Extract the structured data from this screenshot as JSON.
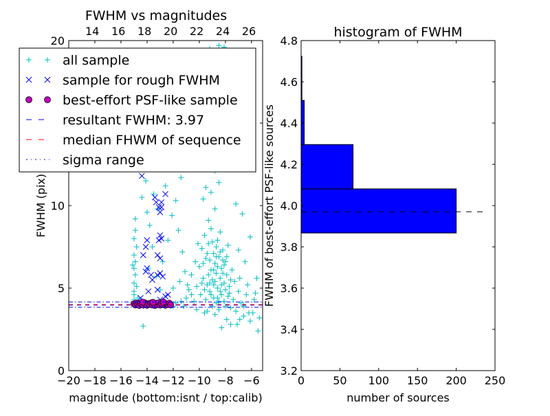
{
  "chart_data": [
    {
      "type": "scatter",
      "title": "FWHM vs magnitudes",
      "xlabel": "magnitude (bottom:isnt / top:calib)",
      "ylabel": "FWHM (pix)",
      "xlim": [
        -20,
        -5.15
      ],
      "ylim": [
        0,
        20
      ],
      "xticks": [
        -20,
        -18,
        -16,
        -14,
        -12,
        -10,
        -8,
        -6
      ],
      "xtick_labels": [
        "−20",
        "−18",
        "−16",
        "−14",
        "−12",
        "−10",
        "−8",
        "−6"
      ],
      "yticks": [
        0,
        5,
        10,
        15,
        20
      ],
      "ytick_labels": [
        "0",
        "5",
        "10",
        "15",
        "20"
      ],
      "top_axis": {
        "offset": 32.2,
        "ticks": [
          14,
          16,
          18,
          20,
          22,
          24,
          26
        ],
        "tick_labels": [
          "14",
          "16",
          "18",
          "20",
          "22",
          "24",
          "26"
        ]
      },
      "legend_position": "upper-left",
      "series": [
        {
          "name": "all sample",
          "marker": "+",
          "color": "#00bfbf",
          "points": [
            [
              -15,
              4.3
            ],
            [
              -15,
              4.8
            ],
            [
              -15,
              5.3
            ],
            [
              -14.9,
              5.8
            ],
            [
              -15,
              6.2
            ],
            [
              -14.9,
              6.6
            ],
            [
              -15,
              7
            ],
            [
              -14.8,
              7.5
            ],
            [
              -15,
              8
            ],
            [
              -14.9,
              8.5
            ],
            [
              -14.9,
              9.2
            ],
            [
              -15.1,
              6.4
            ],
            [
              -14.8,
              5.1
            ],
            [
              -15,
              4.6
            ],
            [
              -14.7,
              4.4
            ],
            [
              -14.3,
              2.7
            ],
            [
              -14.4,
              10.5
            ],
            [
              -14,
              9.6
            ],
            [
              -13.8,
              8.8
            ],
            [
              -13.5,
              10.7
            ],
            [
              -13.2,
              9.8
            ],
            [
              -13.6,
              7.5
            ],
            [
              -13.9,
              6.2
            ],
            [
              -13.3,
              5.7
            ],
            [
              -12.8,
              6.6
            ],
            [
              -12.4,
              7.9
            ],
            [
              -12.1,
              9.4
            ],
            [
              -11.8,
              10.3
            ],
            [
              -11.6,
              8.5
            ],
            [
              -11.3,
              7.2
            ],
            [
              -11.1,
              6
            ],
            [
              -11.5,
              5.4
            ],
            [
              -12,
              5
            ],
            [
              -13,
              4.9
            ],
            [
              -14.1,
              11.5
            ],
            [
              -12.6,
              11.2
            ],
            [
              -11.9,
              12.3
            ],
            [
              -13.4,
              12.8
            ],
            [
              -11.4,
              11.7
            ],
            [
              -10.4,
              4.2
            ],
            [
              -10.2,
              5.1
            ],
            [
              -10,
              6.3
            ],
            [
              -9.9,
              4.6
            ],
            [
              -9.8,
              7.4
            ],
            [
              -9.7,
              5.6
            ],
            [
              -9.6,
              8.2
            ],
            [
              -9.5,
              4.3
            ],
            [
              -9.5,
              6.8
            ],
            [
              -9.4,
              5.2
            ],
            [
              -9.3,
              9.1
            ],
            [
              -9.3,
              7.7
            ],
            [
              -9.2,
              4.8
            ],
            [
              -9.1,
              6.1
            ],
            [
              -9.1,
              8.6
            ],
            [
              -9,
              5.5
            ],
            [
              -9,
              3.9
            ],
            [
              -8.9,
              7.1
            ],
            [
              -8.9,
              4.4
            ],
            [
              -8.8,
              6.5
            ],
            [
              -8.8,
              9.8
            ],
            [
              -8.7,
              5.9
            ],
            [
              -8.7,
              4.1
            ],
            [
              -8.6,
              7.9
            ],
            [
              -8.6,
              5
            ],
            [
              -8.5,
              6.9
            ],
            [
              -8.5,
              3.7
            ],
            [
              -8.4,
              5.6
            ],
            [
              -8.4,
              8.4
            ],
            [
              -8.3,
              4.6
            ],
            [
              -8.3,
              6.2
            ],
            [
              -8.2,
              7.3
            ],
            [
              -8.1,
              5.3
            ],
            [
              -8.1,
              4.2
            ],
            [
              -8,
              6.6
            ],
            [
              -8,
              3.9
            ],
            [
              -7.9,
              5.8
            ],
            [
              -7.8,
              4.5
            ],
            [
              -7.8,
              7.6
            ],
            [
              -7.7,
              5.1
            ],
            [
              -7.6,
              3.8
            ],
            [
              -7.5,
              6.1
            ],
            [
              -7.4,
              4.3
            ],
            [
              -7.3,
              5.4
            ],
            [
              -7.2,
              3.6
            ],
            [
              -7,
              4.8
            ],
            [
              -6.8,
              4.1
            ],
            [
              -6.6,
              3.9
            ],
            [
              -6.4,
              4.6
            ],
            [
              -6.2,
              3.5
            ],
            [
              -9.6,
              4.9
            ],
            [
              -9.4,
              3.6
            ],
            [
              -9.2,
              6.7
            ],
            [
              -9,
              7.8
            ],
            [
              -8.9,
              5.2
            ],
            [
              -8.7,
              6.9
            ],
            [
              -8.6,
              4.4
            ],
            [
              -8.4,
              7.2
            ],
            [
              -8.2,
              5.9
            ],
            [
              -8,
              4.9
            ],
            [
              -7.9,
              6.9
            ],
            [
              -9.8,
              5.3
            ],
            [
              -10.1,
              7.7
            ],
            [
              -10.3,
              6.6
            ],
            [
              -10.6,
              5.8
            ],
            [
              -10.8,
              4.9
            ],
            [
              -11,
              4.4
            ],
            [
              -9.7,
              10.4
            ],
            [
              -9.5,
              11.1
            ],
            [
              -9.1,
              10.8
            ],
            [
              -8.8,
              12.1
            ],
            [
              -8.5,
              11.4
            ],
            [
              -10.2,
              12.6
            ],
            [
              -9.9,
              13.8
            ],
            [
              -9.2,
              14.6
            ],
            [
              -8.6,
              13.3
            ],
            [
              -8.1,
              15.2
            ],
            [
              -9.6,
              16.4
            ],
            [
              -8.9,
              17.1
            ],
            [
              -7.9,
              18.4
            ],
            [
              -9.2,
              19.5
            ],
            [
              -8.5,
              19.7
            ],
            [
              -8.1,
              19.6
            ],
            [
              -10.8,
              19.1
            ],
            [
              -12.5,
              19.4
            ],
            [
              -7.5,
              12.7
            ],
            [
              -7.2,
              10.1
            ],
            [
              -6.7,
              9.5
            ],
            [
              -6.1,
              8.1
            ],
            [
              -7,
              7.3
            ],
            [
              -6.5,
              6.6
            ],
            [
              -5.6,
              5.6
            ],
            [
              -5.8,
              4.3
            ],
            [
              -8.3,
              2.6
            ],
            [
              -7.6,
              2.8
            ],
            [
              -7.1,
              2.8
            ],
            [
              -6.6,
              3.3
            ],
            [
              -6.1,
              3.0
            ],
            [
              -5.9,
              3.5
            ],
            [
              -5.5,
              2.4
            ],
            [
              -5.4,
              3.2
            ],
            [
              -6.9,
              3.1
            ],
            [
              -7.9,
              3.1
            ],
            [
              -8.8,
              3.4
            ],
            [
              -9.6,
              3.5
            ],
            [
              -10.2,
              3.7
            ],
            [
              -11.2,
              3.9
            ],
            [
              -11.8,
              4.1
            ],
            [
              -12,
              3.9
            ],
            [
              -9.3,
              5.8
            ],
            [
              -9.1,
              4.6
            ],
            [
              -8.8,
              5.4
            ],
            [
              -8.6,
              6.3
            ],
            [
              -8.4,
              4.8
            ],
            [
              -8.2,
              6.7
            ],
            [
              -8.9,
              6.1
            ],
            [
              -9.4,
              7.1
            ],
            [
              -8.7,
              7.5
            ],
            [
              -8.3,
              5.2
            ],
            [
              -9.7,
              6.5
            ],
            [
              -9.2,
              5.3
            ],
            [
              -8.5,
              4.2
            ],
            [
              -8.1,
              6.4
            ],
            [
              -7.7,
              4.7
            ],
            [
              -7.6,
              5.5
            ],
            [
              -10.6,
              4.6
            ],
            [
              -10.9,
              5.2
            ],
            [
              -11.4,
              4.2
            ],
            [
              -6.9,
              5.6
            ],
            [
              -6.3,
              5.2
            ],
            [
              -5.7,
              4.7
            ]
          ]
        },
        {
          "name": "sample for rough FWHM",
          "marker": "x",
          "color": "#0000ff",
          "points": [
            [
              -14.4,
              11.8
            ],
            [
              -13.4,
              10.5
            ],
            [
              -13.3,
              10.2
            ],
            [
              -12.9,
              10.2
            ],
            [
              -12.6,
              10.7
            ],
            [
              -13.1,
              9.9
            ],
            [
              -13,
              9.6
            ],
            [
              -12.9,
              9.9
            ],
            [
              -13,
              8.2
            ],
            [
              -12.9,
              8.0
            ],
            [
              -13.1,
              7.9
            ],
            [
              -14.0,
              7.9
            ],
            [
              -14.1,
              7.5
            ],
            [
              -14.3,
              7.0
            ],
            [
              -13.2,
              7.0
            ],
            [
              -13.0,
              6.8
            ],
            [
              -14.0,
              6.2
            ],
            [
              -14.1,
              6.0
            ],
            [
              -13.7,
              5.8
            ],
            [
              -13.6,
              5.5
            ],
            [
              -13.2,
              5.8
            ],
            [
              -13.0,
              5.9
            ],
            [
              -12.8,
              5.7
            ],
            [
              -13.9,
              4.8
            ],
            [
              -13.2,
              4.9
            ],
            [
              -14.5,
              4.4
            ],
            [
              -13.0,
              4.3
            ],
            [
              -12.6,
              4.5
            ],
            [
              -12.4,
              4.6
            ]
          ]
        },
        {
          "name": "best-effort PSF-like sample",
          "marker": "o",
          "color": "#bf00bf",
          "points": [
            [
              -15,
              4.05
            ],
            [
              -14.9,
              3.98
            ],
            [
              -14.8,
              4.1
            ],
            [
              -14.7,
              4.0
            ],
            [
              -14.6,
              3.95
            ],
            [
              -14.5,
              4.08
            ],
            [
              -14.4,
              4.02
            ],
            [
              -14.3,
              3.97
            ],
            [
              -14.2,
              4.12
            ],
            [
              -14.1,
              4.0
            ],
            [
              -14.0,
              3.96
            ],
            [
              -13.9,
              4.06
            ],
            [
              -13.8,
              4.01
            ],
            [
              -13.7,
              4.1
            ],
            [
              -13.6,
              3.98
            ],
            [
              -13.5,
              4.04
            ],
            [
              -13.4,
              3.95
            ],
            [
              -13.3,
              4.07
            ],
            [
              -13.2,
              4.0
            ],
            [
              -13.1,
              4.11
            ],
            [
              -13.0,
              3.97
            ],
            [
              -12.9,
              4.05
            ],
            [
              -12.8,
              4.0
            ],
            [
              -12.7,
              4.09
            ],
            [
              -12.6,
              3.96
            ],
            [
              -12.5,
              4.04
            ],
            [
              -12.4,
              4.0
            ],
            [
              -12.3,
              4.08
            ],
            [
              -12.2,
              3.98
            ],
            [
              -14.35,
              4.15
            ],
            [
              -13.55,
              4.14
            ],
            [
              -12.75,
              4.16
            ]
          ]
        }
      ],
      "hlines": [
        {
          "name": "resultant FWHM: 3.97",
          "y": 3.97,
          "color": "#0000ff",
          "style": "dashed"
        },
        {
          "name": "median FHWM of sequence",
          "y": 4.0,
          "color": "#ff0000",
          "style": "dashed"
        },
        {
          "name": "sigma range",
          "y": [
            3.84,
            4.16
          ],
          "color": "#0000ff",
          "style": "dashdot"
        }
      ]
    },
    {
      "type": "bar",
      "orientation": "horizontal",
      "title": "histogram of FWHM",
      "xlabel": "number of sources",
      "ylabel": "FWHM of best-effort PSF-like sources",
      "xlim": [
        0,
        250
      ],
      "ylim": [
        3.2,
        4.8
      ],
      "xticks": [
        0,
        50,
        100,
        150,
        200,
        250
      ],
      "xtick_labels": [
        "0",
        "50",
        "100",
        "150",
        "200",
        "250"
      ],
      "yticks": [
        3.2,
        3.4,
        3.6,
        3.8,
        4.0,
        4.2,
        4.4,
        4.6,
        4.8
      ],
      "ytick_labels": [
        "3.2",
        "3.4",
        "3.6",
        "3.8",
        "4.0",
        "4.2",
        "4.4",
        "4.6",
        "4.8"
      ],
      "bin_edges": [
        3.867,
        4.081,
        4.296,
        4.51,
        4.724
      ],
      "values": [
        200,
        67,
        4,
        1
      ],
      "color": "#0000ff",
      "reference_line": {
        "y": 3.97,
        "x_extent": 240,
        "color": "#000000",
        "style": "dashed"
      }
    }
  ]
}
